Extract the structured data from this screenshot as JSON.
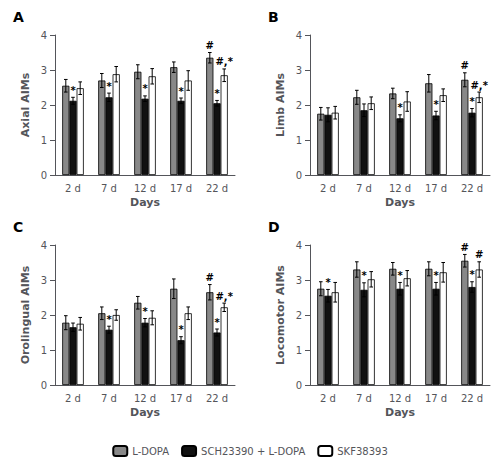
{
  "chart_data": [
    {
      "type": "bar",
      "title": "A",
      "xlabel": "Days",
      "ylabel": "Axial AIMs",
      "categories": [
        "2 d",
        "7 d",
        "12 d",
        "17 d",
        "22 d"
      ],
      "series": [
        {
          "name": "L-DOPA",
          "color": "#888888",
          "values": [
            2.55,
            2.7,
            2.95,
            3.08,
            3.35
          ],
          "errors": [
            0.18,
            0.2,
            0.2,
            0.15,
            0.15
          ]
        },
        {
          "name": "SCH23390 + L-DOPA",
          "color": "#111111",
          "values": [
            2.12,
            2.22,
            2.18,
            2.12,
            2.05
          ],
          "errors": [
            0.1,
            0.12,
            0.08,
            0.08,
            0.08
          ]
        },
        {
          "name": "SKF38393",
          "color": "#ffffff",
          "values": [
            2.48,
            2.88,
            2.82,
            2.7,
            2.85
          ],
          "errors": [
            0.18,
            0.22,
            0.22,
            0.28,
            0.18
          ]
        }
      ],
      "ylim": [
        0,
        4
      ],
      "yticks": [
        0,
        1,
        2,
        3,
        4
      ],
      "grid": false,
      "legend": "bottom",
      "annotations": [
        {
          "text": "*",
          "series": "SCH23390 + L-DOPA",
          "category": "2 d"
        },
        {
          "text": "*",
          "series": "SCH23390 + L-DOPA",
          "category": "7 d"
        },
        {
          "text": "*",
          "series": "SCH23390 + L-DOPA",
          "category": "12 d"
        },
        {
          "text": "*",
          "series": "SCH23390 + L-DOPA",
          "category": "17 d"
        },
        {
          "text": "*",
          "series": "SCH23390 + L-DOPA",
          "category": "22 d"
        },
        {
          "text": "#",
          "series": "L-DOPA",
          "category": "22 d"
        },
        {
          "text": "#,*",
          "series": "SKF38393",
          "category": "22 d"
        }
      ]
    },
    {
      "type": "bar",
      "title": "B",
      "xlabel": "Days",
      "ylabel": "Limb AIMs",
      "categories": [
        "2 d",
        "7 d",
        "12 d",
        "17 d",
        "22 d"
      ],
      "series": [
        {
          "name": "L-DOPA",
          "color": "#888888",
          "values": [
            1.75,
            2.22,
            2.33,
            2.62,
            2.72
          ],
          "errors": [
            0.18,
            0.2,
            0.15,
            0.25,
            0.2
          ]
        },
        {
          "name": "SCH23390 + L-DOPA",
          "color": "#111111",
          "values": [
            1.72,
            1.85,
            1.62,
            1.7,
            1.78
          ],
          "errors": [
            0.2,
            0.18,
            0.1,
            0.12,
            0.12
          ]
        },
        {
          "name": "SKF38393",
          "color": "#ffffff",
          "values": [
            1.78,
            2.05,
            2.1,
            2.28,
            2.22
          ],
          "errors": [
            0.18,
            0.18,
            0.28,
            0.18,
            0.15
          ]
        }
      ],
      "ylim": [
        0,
        4
      ],
      "yticks": [
        0,
        1,
        2,
        3,
        4
      ],
      "grid": false,
      "legend": "bottom",
      "annotations": [
        {
          "text": "*",
          "series": "SCH23390 + L-DOPA",
          "category": "12 d"
        },
        {
          "text": "*",
          "series": "SCH23390 + L-DOPA",
          "category": "17 d"
        },
        {
          "text": "*",
          "series": "SCH23390 + L-DOPA",
          "category": "22 d"
        },
        {
          "text": "#",
          "series": "L-DOPA",
          "category": "22 d"
        },
        {
          "text": "#,*",
          "series": "SKF38393",
          "category": "22 d"
        }
      ]
    },
    {
      "type": "bar",
      "title": "C",
      "xlabel": "Days",
      "ylabel": "Orolingual AIMs",
      "categories": [
        "2 d",
        "7 d",
        "12 d",
        "17 d",
        "22 d"
      ],
      "series": [
        {
          "name": "L-DOPA",
          "color": "#888888",
          "values": [
            1.78,
            2.05,
            2.35,
            2.75,
            2.65
          ],
          "errors": [
            0.2,
            0.18,
            0.18,
            0.28,
            0.22
          ]
        },
        {
          "name": "SCH23390 + L-DOPA",
          "color": "#111111",
          "values": [
            1.65,
            1.58,
            1.78,
            1.28,
            1.5
          ],
          "errors": [
            0.12,
            0.1,
            0.12,
            0.1,
            0.1
          ]
        },
        {
          "name": "SKF38393",
          "color": "#ffffff",
          "values": [
            1.75,
            2.0,
            1.92,
            2.05,
            2.22
          ],
          "errors": [
            0.18,
            0.15,
            0.2,
            0.18,
            0.12
          ]
        }
      ],
      "ylim": [
        0,
        4
      ],
      "yticks": [
        0,
        1,
        2,
        3,
        4
      ],
      "grid": false,
      "legend": "bottom",
      "annotations": [
        {
          "text": "*",
          "series": "SCH23390 + L-DOPA",
          "category": "7 d"
        },
        {
          "text": "*",
          "series": "SCH23390 + L-DOPA",
          "category": "12 d"
        },
        {
          "text": "*",
          "series": "SCH23390 + L-DOPA",
          "category": "17 d"
        },
        {
          "text": "*",
          "series": "SCH23390 + L-DOPA",
          "category": "22 d"
        },
        {
          "text": "#",
          "series": "L-DOPA",
          "category": "22 d"
        },
        {
          "text": "#,*",
          "series": "SKF38393",
          "category": "22 d"
        }
      ]
    },
    {
      "type": "bar",
      "title": "D",
      "xlabel": "Days",
      "ylabel": "Locomotor AIMs",
      "categories": [
        "2 d",
        "7 d",
        "12 d",
        "17 d",
        "22 d"
      ],
      "series": [
        {
          "name": "L-DOPA",
          "color": "#888888",
          "values": [
            2.75,
            3.3,
            3.32,
            3.32,
            3.55
          ],
          "errors": [
            0.2,
            0.22,
            0.18,
            0.2,
            0.18
          ]
        },
        {
          "name": "SCH23390 + L-DOPA",
          "color": "#111111",
          "values": [
            2.55,
            2.72,
            2.75,
            2.75,
            2.8
          ],
          "errors": [
            0.18,
            0.2,
            0.18,
            0.18,
            0.15
          ]
        },
        {
          "name": "SKF38393",
          "color": "#ffffff",
          "values": [
            2.65,
            3.02,
            3.05,
            3.22,
            3.3
          ],
          "errors": [
            0.28,
            0.22,
            0.22,
            0.28,
            0.22
          ]
        }
      ],
      "ylim": [
        0,
        4
      ],
      "yticks": [
        0,
        1,
        2,
        3,
        4
      ],
      "grid": false,
      "legend": "bottom",
      "annotations": [
        {
          "text": "*",
          "series": "SCH23390 + L-DOPA",
          "category": "2 d"
        },
        {
          "text": "*",
          "series": "SCH23390 + L-DOPA",
          "category": "7 d"
        },
        {
          "text": "*",
          "series": "SCH23390 + L-DOPA",
          "category": "12 d"
        },
        {
          "text": "*",
          "series": "SCH23390 + L-DOPA",
          "category": "17 d"
        },
        {
          "text": "*",
          "series": "SCH23390 + L-DOPA",
          "category": "22 d"
        },
        {
          "text": "#",
          "series": "L-DOPA",
          "category": "22 d"
        },
        {
          "text": "#",
          "series": "SKF38393",
          "category": "22 d"
        }
      ]
    }
  ]
}
